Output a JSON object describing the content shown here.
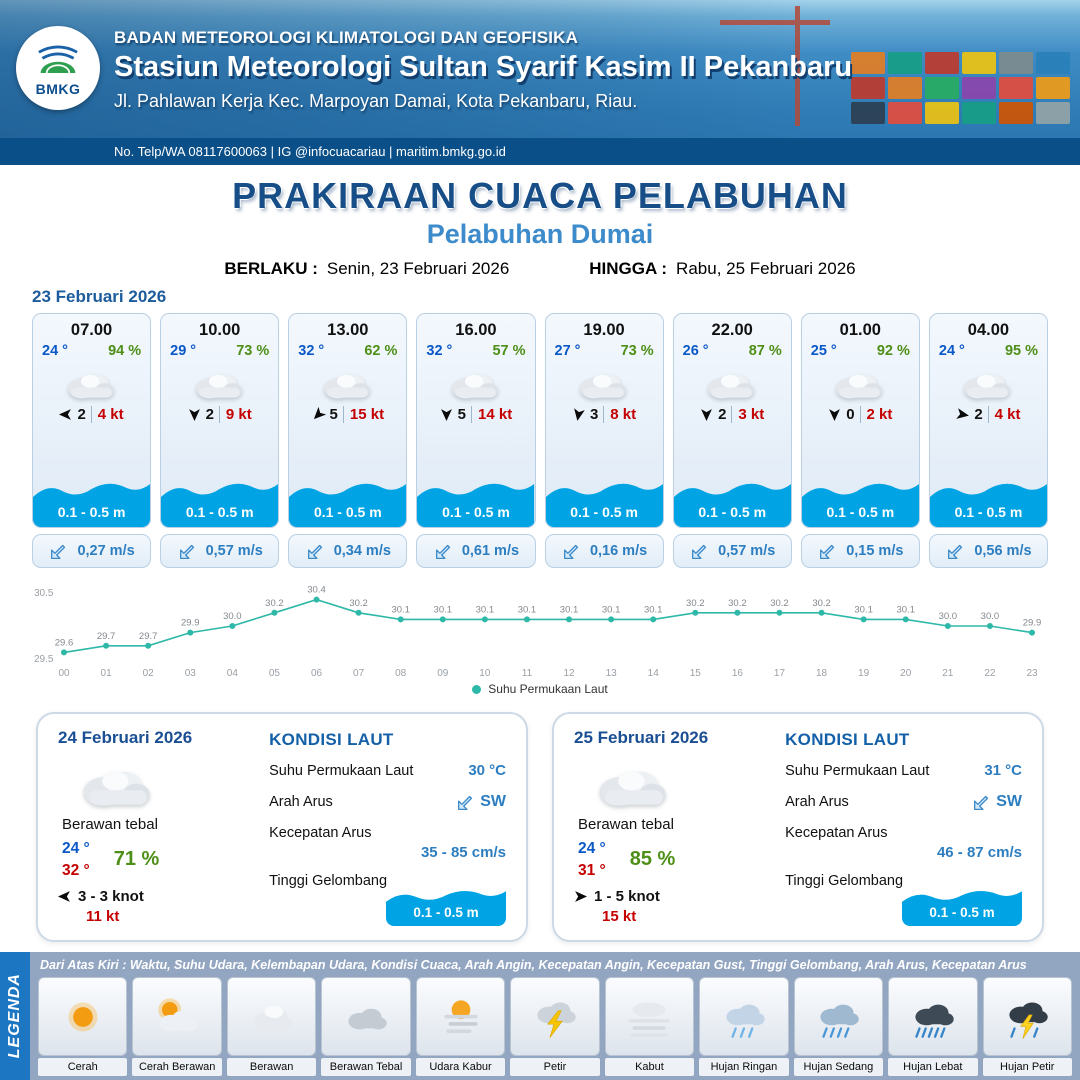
{
  "header": {
    "agency": "BADAN METEOROLOGI KLIMATOLOGI DAN GEOFISIKA",
    "station": "Stasiun Meteorologi Sultan Syarif Kasim II Pekanbaru",
    "address": "Jl. Pahlawan Kerja Kec. Marpoyan Damai, Kota Pekanbaru, Riau.",
    "contact": "No. Telp/WA 08117600063 | IG @infocuacariau | maritim.bmkg.go.id",
    "logo_label": "BMKG"
  },
  "title": {
    "main": "PRAKIRAAN CUACA PELABUHAN",
    "sub": "Pelabuhan Dumai",
    "berlaku_label": "BERLAKU :",
    "berlaku_value": "Senin, 23 Februari 2026",
    "hingga_label": "HINGGA :",
    "hingga_value": "Rabu, 25 Februari 2026"
  },
  "day1": {
    "date": "23 Februari 2026",
    "cards": [
      {
        "time": "07.00",
        "temp": "24 °",
        "humidity": "94 %",
        "wind_deg": 270,
        "wind_speed": "2",
        "wind_gust": "4 kt",
        "wave": "0.1 - 0.5 m",
        "current": "0,27 m/s"
      },
      {
        "time": "10.00",
        "temp": "29 °",
        "humidity": "73 %",
        "wind_deg": 180,
        "wind_speed": "2",
        "wind_gust": "9 kt",
        "wave": "0.1 - 0.5 m",
        "current": "0,57 m/s"
      },
      {
        "time": "13.00",
        "temp": "32 °",
        "humidity": "62 %",
        "wind_deg": 225,
        "wind_speed": "5",
        "wind_gust": "15 kt",
        "wave": "0.1 - 0.5 m",
        "current": "0,34 m/s"
      },
      {
        "time": "16.00",
        "temp": "32 °",
        "humidity": "57 %",
        "wind_deg": 180,
        "wind_speed": "5",
        "wind_gust": "14 kt",
        "wave": "0.1 - 0.5 m",
        "current": "0,61 m/s"
      },
      {
        "time": "19.00",
        "temp": "27 °",
        "humidity": "73 %",
        "wind_deg": 190,
        "wind_speed": "3",
        "wind_gust": "8 kt",
        "wave": "0.1 - 0.5 m",
        "current": "0,16 m/s"
      },
      {
        "time": "22.00",
        "temp": "26 °",
        "humidity": "87 %",
        "wind_deg": 180,
        "wind_speed": "2",
        "wind_gust": "3 kt",
        "wave": "0.1 - 0.5 m",
        "current": "0,57 m/s"
      },
      {
        "time": "01.00",
        "temp": "25 °",
        "humidity": "92 %",
        "wind_deg": 180,
        "wind_speed": "0",
        "wind_gust": "2 kt",
        "wave": "0.1 - 0.5 m",
        "current": "0,15 m/s"
      },
      {
        "time": "04.00",
        "temp": "24 °",
        "humidity": "95 %",
        "wind_deg": 100,
        "wind_speed": "2",
        "wind_gust": "4 kt",
        "wave": "0.1 - 0.5 m",
        "current": "0,56 m/s"
      }
    ]
  },
  "chart_data": {
    "type": "line",
    "legend": "Suhu Permukaan Laut",
    "x": [
      "00",
      "01",
      "02",
      "03",
      "04",
      "05",
      "06",
      "07",
      "08",
      "09",
      "10",
      "11",
      "12",
      "13",
      "14",
      "15",
      "16",
      "17",
      "18",
      "19",
      "20",
      "21",
      "22",
      "23"
    ],
    "values": [
      29.6,
      29.7,
      29.7,
      29.9,
      30.0,
      30.2,
      30.4,
      30.2,
      30.1,
      30.1,
      30.1,
      30.1,
      30.1,
      30.1,
      30.1,
      30.2,
      30.2,
      30.2,
      30.2,
      30.1,
      30.1,
      30.0,
      30.0,
      29.9
    ],
    "ylim": [
      29.5,
      30.5
    ],
    "line_color": "#2db8a8",
    "grid": false,
    "legend_position": "bottom"
  },
  "day_cards": [
    {
      "date": "24 Februari 2026",
      "condition": "Berawan tebal",
      "temp_low": "24 °",
      "temp_high": "32 °",
      "humidity": "71 %",
      "wind_deg": 270,
      "wind": "3 - 3 knot",
      "gust": "11 kt",
      "sea_title": "KONDISI LAUT",
      "sst_label": "Suhu Permukaan Laut",
      "sst_value": "30 °C",
      "current_dir_label": "Arah Arus",
      "current_dir_value": "SW",
      "current_speed_label": "Kecepatan Arus",
      "current_speed_value": "35 - 85 cm/s",
      "wave_label": "Tinggi Gelombang",
      "wave_value": "0.1 - 0.5 m"
    },
    {
      "date": "25 Februari 2026",
      "condition": "Berawan tebal",
      "temp_low": "24 °",
      "temp_high": "31 °",
      "humidity": "85 %",
      "wind_deg": 90,
      "wind": "1 - 5 knot",
      "gust": "15 kt",
      "sea_title": "KONDISI LAUT",
      "sst_label": "Suhu Permukaan Laut",
      "sst_value": "31 °C",
      "current_dir_label": "Arah Arus",
      "current_dir_value": "SW",
      "current_speed_label": "Kecepatan Arus",
      "current_speed_value": "46 - 87 cm/s",
      "wave_label": "Tinggi Gelombang",
      "wave_value": "0.1 - 0.5 m"
    }
  ],
  "legend": {
    "title": "LEGENDA",
    "description": "Dari Atas Kiri : Waktu, Suhu Udara, Kelembapan Udara, Kondisi Cuaca, Arah Angin, Kecepatan Angin, Kecepatan Gust, Tinggi Gelombang, Arah Arus, Kecepatan Arus",
    "items": [
      {
        "label": "Cerah",
        "icon": "sun"
      },
      {
        "label": "Cerah Berawan",
        "icon": "sun-cloud"
      },
      {
        "label": "Berawan",
        "icon": "cloud"
      },
      {
        "label": "Berawan Tebal",
        "icon": "thick-cloud"
      },
      {
        "label": "Udara Kabur",
        "icon": "haze"
      },
      {
        "label": "Petir",
        "icon": "lightning"
      },
      {
        "label": "Kabut",
        "icon": "fog"
      },
      {
        "label": "Hujan Ringan",
        "icon": "light-rain"
      },
      {
        "label": "Hujan Sedang",
        "icon": "moderate-rain"
      },
      {
        "label": "Hujan Lebat",
        "icon": "heavy-rain"
      },
      {
        "label": "Hujan Petir",
        "icon": "thunderstorm"
      }
    ]
  },
  "colors": {
    "accent_blue": "#1d76c2",
    "temp_blue": "#0a58c8",
    "humidity_green": "#4e8f17",
    "gust_red": "#c40000",
    "wave_blue": "#00a4e4",
    "chart_teal": "#2db8a8"
  }
}
